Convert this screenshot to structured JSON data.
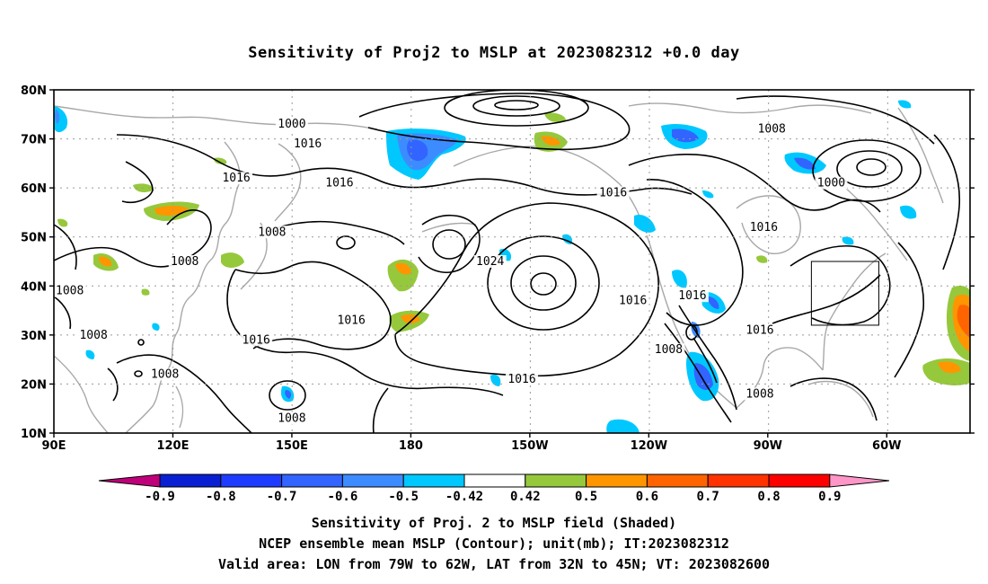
{
  "title": "Sensitivity of Proj2 to MSLP at 2023082312 +0.0 day",
  "axes": {
    "lat_labels": [
      "80N",
      "70N",
      "60N",
      "50N",
      "40N",
      "30N",
      "20N",
      "10N"
    ],
    "lon_labels": [
      "90E",
      "120E",
      "150E",
      "180",
      "150W",
      "120W",
      "90W",
      "60W"
    ]
  },
  "colorbar": {
    "labels": [
      "-0.9",
      "-0.8",
      "-0.7",
      "-0.6",
      "-0.5",
      "-0.42",
      "0.42",
      "0.5",
      "0.6",
      "0.7",
      "0.8",
      "0.9"
    ],
    "colors": [
      "#c0007a",
      "#0a1ed2",
      "#1e3cff",
      "#3264ff",
      "#3c8cff",
      "#00c8ff",
      "#ffffff",
      "#96c83c",
      "#ff9600",
      "#ff6400",
      "#ff3200",
      "#ff0000",
      "#ff96c8"
    ]
  },
  "contour_labels": [
    {
      "text": "1000",
      "lon": 150,
      "lat": 73
    },
    {
      "text": "1016",
      "lon": 154,
      "lat": 69
    },
    {
      "text": "1008",
      "lon": 271,
      "lat": 72
    },
    {
      "text": "1016",
      "lon": 136,
      "lat": 62
    },
    {
      "text": "1016",
      "lon": 162,
      "lat": 61
    },
    {
      "text": "1016",
      "lon": 231,
      "lat": 59
    },
    {
      "text": "1000",
      "lon": 286,
      "lat": 61
    },
    {
      "text": "1016",
      "lon": 269,
      "lat": 52
    },
    {
      "text": "1008",
      "lon": 145,
      "lat": 51
    },
    {
      "text": "1024",
      "lon": 200,
      "lat": 45
    },
    {
      "text": "1008",
      "lon": 123,
      "lat": 45
    },
    {
      "text": "1008",
      "lon": 94,
      "lat": 39
    },
    {
      "text": "1016",
      "lon": 236,
      "lat": 37
    },
    {
      "text": "1016",
      "lon": 251,
      "lat": 38
    },
    {
      "text": "1016",
      "lon": 165,
      "lat": 33
    },
    {
      "text": "1016",
      "lon": 141,
      "lat": 29
    },
    {
      "text": "1016",
      "lon": 268,
      "lat": 31
    },
    {
      "text": "1008",
      "lon": 100,
      "lat": 30
    },
    {
      "text": "1008",
      "lon": 245,
      "lat": 27
    },
    {
      "text": "1008",
      "lon": 118,
      "lat": 22
    },
    {
      "text": "1016",
      "lon": 208,
      "lat": 21
    },
    {
      "text": "1008",
      "lon": 268,
      "lat": 18
    },
    {
      "text": "1008",
      "lon": 150,
      "lat": 13
    }
  ],
  "valid_box": {
    "lon_west": 281,
    "lon_east": 298,
    "lat_south": 32,
    "lat_north": 45
  },
  "captions": {
    "line1": "Sensitivity of Proj. 2 to MSLP field (Shaded)",
    "line2": "NCEP ensemble mean MSLP (Contour); unit(mb); IT:2023082312",
    "line3": "Valid area: LON from 79W to 62W, LAT from 32N to 45N; VT: 2023082600"
  }
}
